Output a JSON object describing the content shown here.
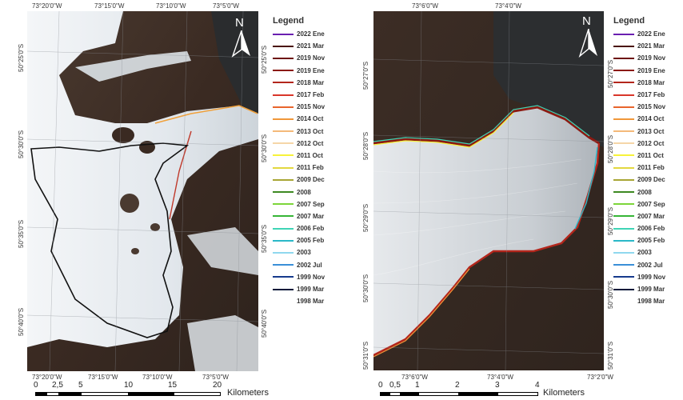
{
  "maps": [
    {
      "id": "overview",
      "top_labels": [
        "73°20'0\"W",
        "73°15'0\"W",
        "73°10'0\"W",
        "73°5'0\"W"
      ],
      "bottom_labels": [
        "73°20'0\"W",
        "73°15'0\"W",
        "73°10'0\"W",
        "73°5'0\"W"
      ],
      "left_labels": [
        "50°25'0\"S",
        "50°30'0\"S",
        "50°35'0\"S",
        "50°40'0\"S"
      ],
      "right_labels": [
        "50°25'0\"S",
        "50°30'0\"S",
        "50°35'0\"S",
        "50°40'0\"S"
      ],
      "north_label": "N",
      "scale": {
        "ticks": [
          "0",
          "2,5",
          "5",
          "10",
          "15",
          "20"
        ],
        "unit": "Kilometers"
      }
    },
    {
      "id": "terminus-detail",
      "top_labels": [
        "73°6'0\"W",
        "73°4'0\"W"
      ],
      "bottom_labels": [
        "73°6'0\"W",
        "73°4'0\"W",
        "73°2'0\"W"
      ],
      "left_labels": [
        "50°27'0\"S",
        "50°28'0\"S",
        "50°29'0\"S",
        "50°30'0\"S",
        "50°31'0\"S"
      ],
      "right_labels": [
        "50°27'0\"S",
        "50°28'0\"S",
        "50°29'0\"S",
        "50°30'0\"S",
        "50°31'0\"S"
      ],
      "north_label": "N",
      "scale": {
        "ticks": [
          "0",
          "0,5",
          "1",
          "2",
          "3",
          "4"
        ],
        "unit": "Kilometers"
      }
    }
  ],
  "legend": {
    "title": "Legend",
    "items": [
      {
        "label": "2022 Ene",
        "color": "#6a1fb0"
      },
      {
        "label": "2021 Mar",
        "color": "#4a1208"
      },
      {
        "label": "2019 Nov",
        "color": "#6e1410"
      },
      {
        "label": "2019 Ene",
        "color": "#8b1a12"
      },
      {
        "label": "2018 Mar",
        "color": "#b3261c"
      },
      {
        "label": "2017 Feb",
        "color": "#d9362a"
      },
      {
        "label": "2015 Nov",
        "color": "#e8652c"
      },
      {
        "label": "2014 Oct",
        "color": "#f0973a"
      },
      {
        "label": "2013 Oct",
        "color": "#f4b97a"
      },
      {
        "label": "2012 Oct",
        "color": "#f5d6a8"
      },
      {
        "label": "2011 Oct",
        "color": "#f7f23a"
      },
      {
        "label": "2011 Feb",
        "color": "#e2d840"
      },
      {
        "label": "2009 Dec",
        "color": "#a8a635"
      },
      {
        "label": "2008",
        "color": "#3d8a22"
      },
      {
        "label": "2007 Sep",
        "color": "#7cd63a"
      },
      {
        "label": "2007 Mar",
        "color": "#36b536"
      },
      {
        "label": "2006 Feb",
        "color": "#3fd4b6"
      },
      {
        "label": "2005 Feb",
        "color": "#2ab8c8"
      },
      {
        "label": "2003",
        "color": "#8fd8ee"
      },
      {
        "label": "2002 Jul",
        "color": "#3a8fd8"
      },
      {
        "label": "1999 Nov",
        "color": "#163a8c"
      },
      {
        "label": "1999 Mar",
        "color": "#0b1a3a"
      },
      {
        "label": "1998 Mar",
        "color": "#ffffff"
      }
    ]
  }
}
